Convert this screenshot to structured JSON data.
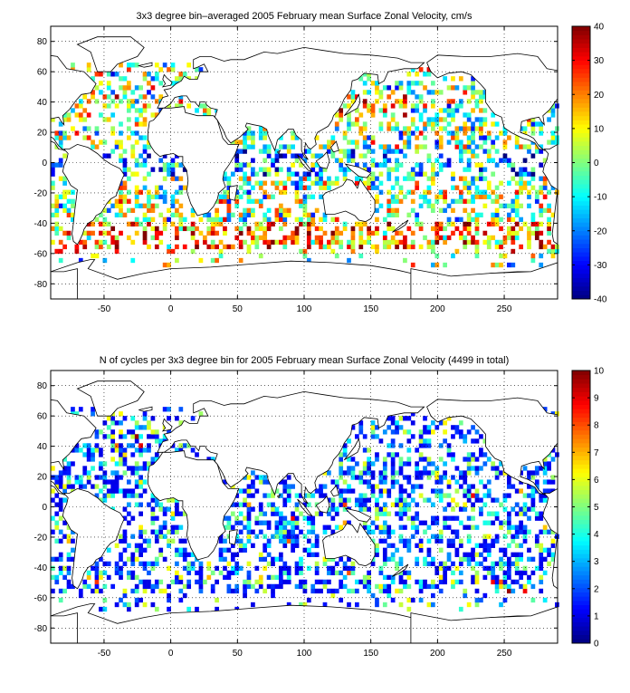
{
  "chart_data": [
    {
      "type": "heatmap",
      "title": "3x3 degree bin–averaged 2005 February mean Surface Zonal Velocity, cm/s",
      "xlabel": "",
      "ylabel": "",
      "xlim": [
        -90,
        290
      ],
      "ylim": [
        -90,
        90
      ],
      "xticks": [
        -50,
        0,
        50,
        100,
        150,
        200,
        250
      ],
      "yticks": [
        80,
        60,
        40,
        20,
        0,
        -20,
        -40,
        -60,
        -80
      ],
      "grid": true,
      "colormap": "jet",
      "colorbar": {
        "min": -40,
        "max": 40,
        "ticks": [
          40,
          30,
          20,
          10,
          0,
          -10,
          -20,
          -30,
          -40
        ]
      }
    },
    {
      "type": "heatmap",
      "title": "N of cycles per 3x3 degree bin for 2005 February mean Surface Zonal Velocity (4499 in total)",
      "xlabel": "",
      "ylabel": "",
      "xlim": [
        -90,
        290
      ],
      "ylim": [
        -90,
        90
      ],
      "xticks": [
        -50,
        0,
        50,
        100,
        150,
        200,
        250
      ],
      "yticks": [
        80,
        60,
        40,
        20,
        0,
        -20,
        -40,
        -60,
        -80
      ],
      "grid": true,
      "colormap": "jet",
      "colorbar": {
        "min": 0,
        "max": 10,
        "ticks": [
          10,
          9,
          8,
          7,
          6,
          5,
          4,
          3,
          2,
          1,
          0
        ]
      }
    }
  ]
}
